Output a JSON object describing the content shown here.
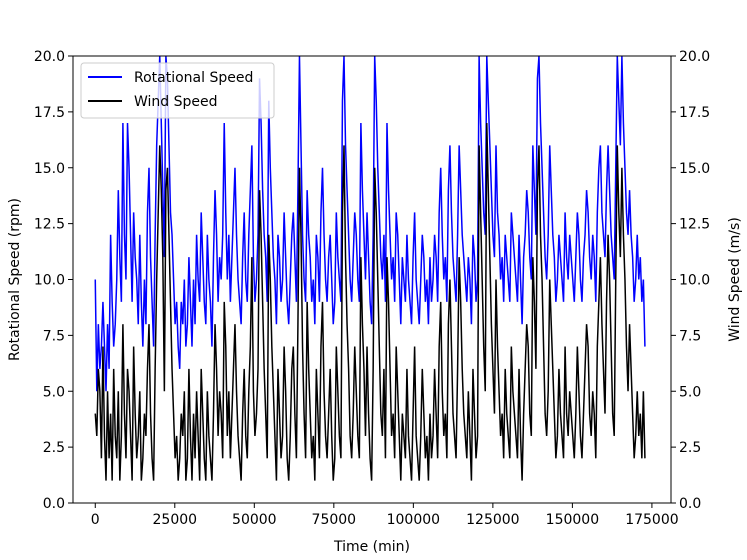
{
  "chart_data": {
    "type": "line",
    "xlabel": "Time (min)",
    "ylabel_left": "Rotational Speed (rpm)",
    "ylabel_right": "Wind Speed (m/s)",
    "xlim": [
      -7000,
      181000
    ],
    "ylim_left": [
      0,
      20
    ],
    "ylim_right": [
      0,
      20
    ],
    "x_ticks": [
      0,
      25000,
      50000,
      75000,
      100000,
      125000,
      150000,
      175000
    ],
    "x_tick_labels": [
      "0",
      "25000",
      "50000",
      "75000",
      "100000",
      "125000",
      "150000",
      "175000"
    ],
    "y_ticks": [
      0,
      2.5,
      5,
      7.5,
      10,
      12.5,
      15,
      17.5,
      20
    ],
    "y_tick_labels": [
      "0.0",
      "2.5",
      "5.0",
      "7.5",
      "10.0",
      "12.5",
      "15.0",
      "17.5",
      "20.0"
    ],
    "grid": false,
    "legend_position": "upper-left",
    "x_range": [
      0,
      172800
    ],
    "sample_step_min": 400,
    "series": [
      {
        "name": "Rotational Speed",
        "color": "#0000ff",
        "values": [
          10,
          5,
          8,
          6,
          7,
          9,
          7,
          5,
          8,
          6,
          12,
          9,
          7,
          8,
          10,
          14,
          11,
          9,
          17,
          12,
          10,
          17,
          15,
          12,
          9,
          13,
          11,
          10,
          8,
          12,
          9,
          7,
          10,
          8,
          13,
          15,
          11,
          9,
          7,
          12,
          16,
          18,
          20,
          17,
          14,
          11,
          20,
          19,
          16,
          13,
          12,
          10,
          8,
          9,
          7,
          6,
          9,
          8,
          10,
          7,
          8,
          11,
          9,
          7,
          10,
          8,
          12,
          10,
          9,
          13,
          11,
          9,
          8,
          12,
          10,
          9,
          7,
          11,
          14,
          12,
          9,
          11,
          10,
          12,
          17,
          13,
          10,
          12,
          9,
          11,
          13,
          15,
          12,
          10,
          9,
          8,
          11,
          13,
          10,
          9,
          12,
          14,
          16,
          11,
          9,
          10,
          12,
          19,
          17,
          14,
          12,
          11,
          9,
          18,
          15,
          13,
          11,
          10,
          8,
          12,
          11,
          9,
          10,
          13,
          11,
          9,
          8,
          10,
          12,
          13,
          11,
          9,
          14,
          20,
          16,
          12,
          10,
          9,
          14,
          12,
          11,
          9,
          10,
          8,
          12,
          11,
          9,
          13,
          15,
          12,
          10,
          9,
          11,
          12,
          10,
          8,
          9,
          13,
          11,
          10,
          9,
          18,
          20,
          16,
          14,
          12,
          10,
          9,
          11,
          13,
          12,
          10,
          9,
          17,
          14,
          12,
          10,
          13,
          11,
          9,
          8,
          12,
          20,
          18,
          15,
          13,
          11,
          10,
          12,
          9,
          17,
          14,
          12,
          10,
          11,
          9,
          13,
          12,
          10,
          8,
          11,
          10,
          9,
          12,
          10,
          9,
          8,
          11,
          13,
          10,
          9,
          8,
          10,
          12,
          11,
          9,
          10,
          8,
          11,
          9,
          10,
          12,
          11,
          9,
          13,
          15,
          12,
          10,
          11,
          9,
          14,
          16,
          13,
          11,
          10,
          9,
          12,
          16,
          14,
          12,
          11,
          10,
          9,
          11,
          10,
          8,
          12,
          11,
          9,
          10,
          20,
          17,
          15,
          13,
          12,
          20,
          18,
          16,
          14,
          12,
          11,
          16,
          13,
          12,
          10,
          11,
          9,
          12,
          11,
          10,
          9,
          13,
          12,
          11,
          10,
          9,
          12,
          10,
          8,
          11,
          12,
          14,
          13,
          11,
          10,
          16,
          14,
          12,
          19,
          20,
          17,
          15,
          13,
          11,
          10,
          12,
          16,
          14,
          12,
          11,
          9,
          10,
          12,
          11,
          10,
          9,
          13,
          11,
          10,
          12,
          11,
          10,
          9,
          11,
          13,
          12,
          10,
          9,
          11,
          12,
          14,
          13,
          11,
          10,
          12,
          11,
          9,
          13,
          15,
          16,
          13,
          12,
          11,
          14,
          16,
          14,
          12,
          11,
          10,
          15,
          20,
          18,
          16,
          20,
          17,
          15,
          13,
          12,
          14,
          12,
          11,
          9,
          10,
          12,
          10,
          11,
          9,
          10,
          7
        ]
      },
      {
        "name": "Wind Speed",
        "color": "#000000",
        "values": [
          4,
          3,
          6,
          5,
          2,
          7,
          3,
          1,
          5,
          2,
          4,
          1,
          6,
          3,
          2,
          5,
          1,
          3,
          8,
          4,
          2,
          6,
          5,
          3,
          1,
          7,
          4,
          2,
          3,
          5,
          1,
          2,
          4,
          3,
          6,
          8,
          4,
          2,
          1,
          6,
          10,
          13,
          16,
          14,
          11,
          5,
          14,
          15,
          12,
          9,
          6,
          4,
          2,
          3,
          1,
          2,
          4,
          3,
          5,
          1,
          2,
          6,
          3,
          1,
          4,
          2,
          5,
          3,
          1,
          6,
          4,
          2,
          1,
          5,
          3,
          2,
          1,
          4,
          8,
          6,
          3,
          5,
          4,
          2,
          9,
          7,
          3,
          5,
          2,
          4,
          6,
          8,
          5,
          3,
          2,
          1,
          4,
          6,
          3,
          2,
          5,
          7,
          11,
          5,
          3,
          4,
          6,
          14,
          12,
          9,
          6,
          4,
          2,
          12,
          10,
          7,
          5,
          3,
          1,
          6,
          4,
          2,
          3,
          7,
          5,
          2,
          1,
          3,
          6,
          7,
          4,
          2,
          8,
          15,
          12,
          7,
          4,
          2,
          9,
          6,
          4,
          2,
          3,
          1,
          6,
          4,
          2,
          7,
          9,
          5,
          3,
          2,
          4,
          6,
          3,
          1,
          2,
          7,
          5,
          3,
          2,
          13,
          16,
          11,
          8,
          6,
          3,
          2,
          4,
          7,
          5,
          3,
          2,
          11,
          8,
          6,
          3,
          7,
          4,
          2,
          1,
          6,
          15,
          13,
          10,
          7,
          4,
          3,
          6,
          2,
          11,
          9,
          6,
          3,
          4,
          2,
          7,
          5,
          3,
          1,
          4,
          3,
          2,
          6,
          3,
          2,
          1,
          4,
          7,
          3,
          2,
          1,
          3,
          6,
          4,
          2,
          3,
          1,
          4,
          2,
          3,
          6,
          4,
          2,
          7,
          9,
          5,
          3,
          4,
          2,
          8,
          10,
          7,
          4,
          3,
          2,
          6,
          11,
          9,
          6,
          4,
          3,
          2,
          5,
          3,
          1,
          6,
          4,
          2,
          3,
          16,
          13,
          10,
          7,
          5,
          17,
          14,
          11,
          8,
          6,
          4,
          10,
          7,
          5,
          3,
          4,
          2,
          6,
          4,
          3,
          2,
          7,
          5,
          4,
          3,
          2,
          6,
          3,
          1,
          4,
          6,
          8,
          7,
          4,
          3,
          11,
          9,
          6,
          14,
          16,
          12,
          10,
          7,
          4,
          3,
          5,
          10,
          8,
          6,
          4,
          2,
          3,
          6,
          4,
          3,
          2,
          7,
          4,
          3,
          5,
          4,
          3,
          2,
          4,
          7,
          5,
          3,
          2,
          4,
          6,
          8,
          7,
          4,
          3,
          5,
          4,
          2,
          7,
          9,
          11,
          8,
          6,
          4,
          9,
          12,
          10,
          7,
          4,
          3,
          10,
          16,
          13,
          11,
          15,
          12,
          10,
          7,
          5,
          8,
          6,
          4,
          2,
          3,
          5,
          3,
          4,
          2,
          5,
          2
        ]
      }
    ]
  }
}
